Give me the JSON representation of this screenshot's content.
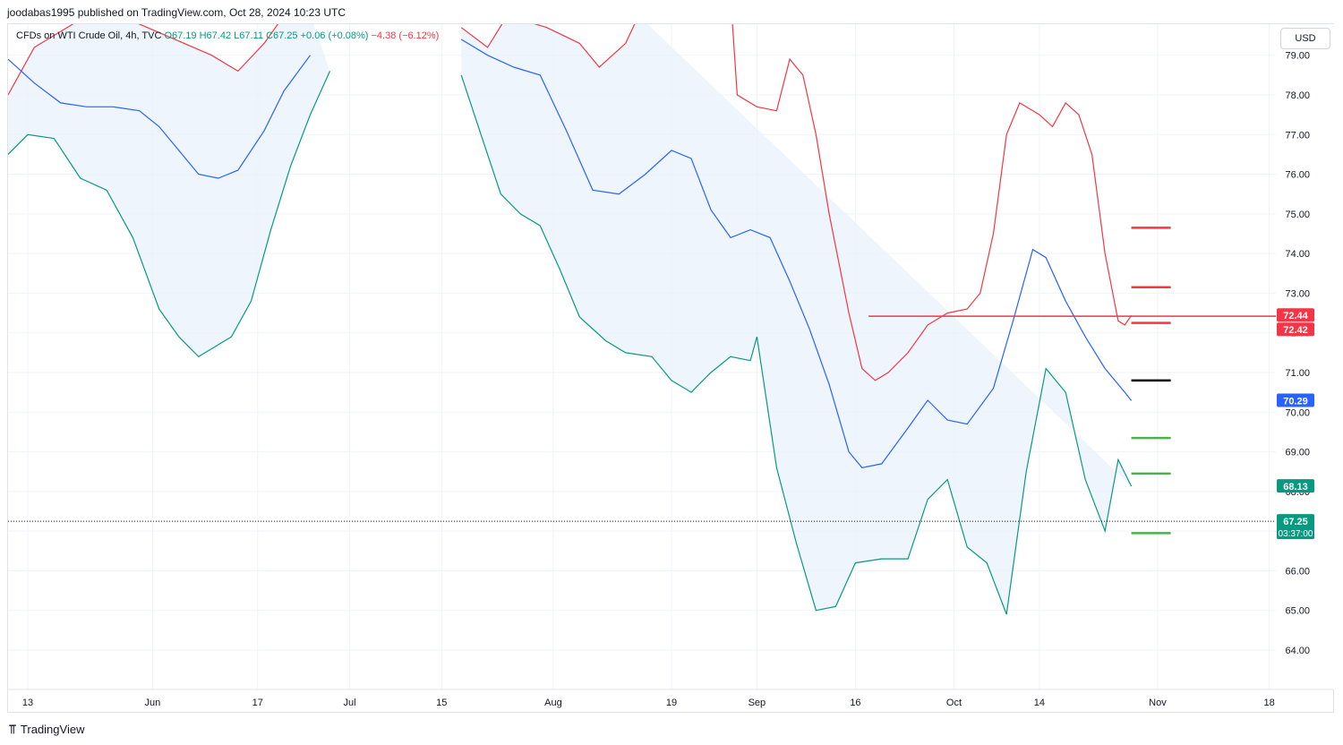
{
  "publisher": "joodabas1995 published on TradingView.com, Oct 28, 2024 10:23 UTC",
  "legend": {
    "symbol": "CFDs on WTI Crude Oil, 4h, TVC",
    "open": "O67.19",
    "high": "H67.42",
    "low": "L67.11",
    "close": "C67.25",
    "change": "+0.06 (+0.08%)",
    "change_range": "−4.38 (−6.12%)"
  },
  "currency": "USD",
  "brand": "TradingView",
  "colors": {
    "up": "#089981",
    "down": "#f23645",
    "basis": "#2962ff",
    "upper_band": "#f23645",
    "lower_band": "#089981",
    "band_fill": "#e8f1fb",
    "grid": "#f0f3fa"
  },
  "chart_data": {
    "type": "line",
    "title": "CFDs on WTI Crude Oil, 4h, TVC",
    "ylabel": "USD",
    "y_range": [
      64.0,
      79.4
    ],
    "y_ticks": [
      "79.00",
      "78.00",
      "77.00",
      "76.00",
      "75.00",
      "74.00",
      "73.00",
      "72.00",
      "71.00",
      "70.00",
      "69.00",
      "68.00",
      "67.00",
      "66.00",
      "65.00",
      "64.00"
    ],
    "x_range": [
      "2024-05-10",
      "2024-11-19"
    ],
    "x_ticks": [
      {
        "date": "2024-05-13",
        "label": "13"
      },
      {
        "date": "2024-06-01",
        "label": "Jun"
      },
      {
        "date": "2024-06-17",
        "label": "17"
      },
      {
        "date": "2024-07-01",
        "label": "Jul"
      },
      {
        "date": "2024-07-15",
        "label": "15"
      },
      {
        "date": "2024-08-01",
        "label": "Aug"
      },
      {
        "date": "2024-08-19",
        "label": "19"
      },
      {
        "date": "2024-09-01",
        "label": "Sep"
      },
      {
        "date": "2024-09-16",
        "label": "16"
      },
      {
        "date": "2024-10-01",
        "label": "Oct"
      },
      {
        "date": "2024-10-14",
        "label": "14"
      },
      {
        "date": "2024-11-01",
        "label": "Nov"
      },
      {
        "date": "2024-11-18",
        "label": "18"
      }
    ],
    "series": [
      {
        "key": "upper",
        "values": [
          [
            "2024-05-10",
            78.0
          ],
          [
            "2024-05-14",
            79.2
          ],
          [
            "2024-05-20",
            79.8
          ],
          [
            "2024-05-27",
            80.0
          ],
          [
            "2024-06-03",
            79.5
          ],
          [
            "2024-06-10",
            79.0
          ],
          [
            "2024-06-14",
            78.6
          ],
          [
            "2024-06-18",
            79.3
          ],
          [
            "2024-06-21",
            80.0
          ],
          [
            "2024-06-24",
            80.5
          ],
          [
            "2024-07-18",
            79.7
          ],
          [
            "2024-07-22",
            79.2
          ],
          [
            "2024-07-25",
            80.0
          ],
          [
            "2024-07-31",
            79.7
          ],
          [
            "2024-08-05",
            79.3
          ],
          [
            "2024-08-08",
            78.7
          ],
          [
            "2024-08-12",
            79.3
          ],
          [
            "2024-08-14",
            80.0
          ],
          [
            "2024-08-28",
            80.5
          ],
          [
            "2024-08-29",
            78.0
          ],
          [
            "2024-09-01",
            77.7
          ],
          [
            "2024-09-04",
            77.6
          ],
          [
            "2024-09-06",
            78.9
          ],
          [
            "2024-09-08",
            78.5
          ],
          [
            "2024-09-10",
            77.0
          ],
          [
            "2024-09-12",
            75.0
          ],
          [
            "2024-09-15",
            72.5
          ],
          [
            "2024-09-17",
            71.1
          ],
          [
            "2024-09-19",
            70.8
          ],
          [
            "2024-09-21",
            71.0
          ],
          [
            "2024-09-24",
            71.5
          ],
          [
            "2024-09-27",
            72.2
          ],
          [
            "2024-09-30",
            72.5
          ],
          [
            "2024-10-03",
            72.6
          ],
          [
            "2024-10-05",
            73.0
          ],
          [
            "2024-10-07",
            74.5
          ],
          [
            "2024-10-09",
            77.0
          ],
          [
            "2024-10-11",
            77.8
          ],
          [
            "2024-10-14",
            77.5
          ],
          [
            "2024-10-16",
            77.2
          ],
          [
            "2024-10-18",
            77.8
          ],
          [
            "2024-10-20",
            77.5
          ],
          [
            "2024-10-22",
            76.5
          ],
          [
            "2024-10-24",
            74.0
          ],
          [
            "2024-10-26",
            72.3
          ],
          [
            "2024-10-27",
            72.2
          ],
          [
            "2024-10-28",
            72.44
          ]
        ]
      },
      {
        "key": "basis",
        "values": [
          [
            "2024-05-10",
            78.9
          ],
          [
            "2024-05-14",
            78.3
          ],
          [
            "2024-05-18",
            77.8
          ],
          [
            "2024-05-22",
            77.7
          ],
          [
            "2024-05-26",
            77.7
          ],
          [
            "2024-05-30",
            77.6
          ],
          [
            "2024-06-02",
            77.2
          ],
          [
            "2024-06-05",
            76.6
          ],
          [
            "2024-06-08",
            76.0
          ],
          [
            "2024-06-11",
            75.9
          ],
          [
            "2024-06-14",
            76.1
          ],
          [
            "2024-06-18",
            77.1
          ],
          [
            "2024-06-21",
            78.1
          ],
          [
            "2024-06-25",
            79.0
          ],
          [
            "2024-07-18",
            79.4
          ],
          [
            "2024-07-22",
            79.0
          ],
          [
            "2024-07-26",
            78.7
          ],
          [
            "2024-07-30",
            78.5
          ],
          [
            "2024-08-03",
            77.1
          ],
          [
            "2024-08-07",
            75.6
          ],
          [
            "2024-08-11",
            75.5
          ],
          [
            "2024-08-15",
            76.0
          ],
          [
            "2024-08-19",
            76.6
          ],
          [
            "2024-08-22",
            76.4
          ],
          [
            "2024-08-25",
            75.1
          ],
          [
            "2024-08-28",
            74.4
          ],
          [
            "2024-08-31",
            74.6
          ],
          [
            "2024-09-03",
            74.4
          ],
          [
            "2024-09-06",
            73.3
          ],
          [
            "2024-09-09",
            72.1
          ],
          [
            "2024-09-12",
            70.7
          ],
          [
            "2024-09-15",
            69.0
          ],
          [
            "2024-09-17",
            68.6
          ],
          [
            "2024-09-20",
            68.7
          ],
          [
            "2024-09-24",
            69.6
          ],
          [
            "2024-09-27",
            70.3
          ],
          [
            "2024-09-30",
            69.8
          ],
          [
            "2024-10-03",
            69.7
          ],
          [
            "2024-10-07",
            70.6
          ],
          [
            "2024-10-10",
            72.3
          ],
          [
            "2024-10-13",
            74.1
          ],
          [
            "2024-10-15",
            73.9
          ],
          [
            "2024-10-18",
            72.8
          ],
          [
            "2024-10-21",
            71.9
          ],
          [
            "2024-10-24",
            71.1
          ],
          [
            "2024-10-27",
            70.5
          ],
          [
            "2024-10-28",
            70.29
          ]
        ]
      },
      {
        "key": "lower",
        "values": [
          [
            "2024-05-10",
            76.5
          ],
          [
            "2024-05-13",
            77.0
          ],
          [
            "2024-05-17",
            76.9
          ],
          [
            "2024-05-21",
            75.9
          ],
          [
            "2024-05-25",
            75.6
          ],
          [
            "2024-05-29",
            74.4
          ],
          [
            "2024-06-02",
            72.6
          ],
          [
            "2024-06-05",
            71.9
          ],
          [
            "2024-06-08",
            71.4
          ],
          [
            "2024-06-11",
            71.7
          ],
          [
            "2024-06-13",
            71.9
          ],
          [
            "2024-06-16",
            72.8
          ],
          [
            "2024-06-19",
            74.6
          ],
          [
            "2024-06-22",
            76.2
          ],
          [
            "2024-06-25",
            77.5
          ],
          [
            "2024-06-28",
            78.6
          ],
          [
            "2024-07-18",
            78.5
          ],
          [
            "2024-07-21",
            77.0
          ],
          [
            "2024-07-24",
            75.5
          ],
          [
            "2024-07-27",
            75.0
          ],
          [
            "2024-07-30",
            74.7
          ],
          [
            "2024-08-02",
            73.6
          ],
          [
            "2024-08-05",
            72.4
          ],
          [
            "2024-08-09",
            71.8
          ],
          [
            "2024-08-12",
            71.5
          ],
          [
            "2024-08-16",
            71.4
          ],
          [
            "2024-08-19",
            70.8
          ],
          [
            "2024-08-22",
            70.5
          ],
          [
            "2024-08-25",
            71.0
          ],
          [
            "2024-08-28",
            71.4
          ],
          [
            "2024-08-31",
            71.3
          ],
          [
            "2024-09-01",
            71.9
          ],
          [
            "2024-09-04",
            68.6
          ],
          [
            "2024-09-07",
            66.7
          ],
          [
            "2024-09-10",
            65.0
          ],
          [
            "2024-09-13",
            65.1
          ],
          [
            "2024-09-16",
            66.2
          ],
          [
            "2024-09-20",
            66.3
          ],
          [
            "2024-09-24",
            66.3
          ],
          [
            "2024-09-27",
            67.8
          ],
          [
            "2024-09-30",
            68.3
          ],
          [
            "2024-10-03",
            66.6
          ],
          [
            "2024-10-06",
            66.2
          ],
          [
            "2024-10-09",
            64.9
          ],
          [
            "2024-10-12",
            68.5
          ],
          [
            "2024-10-15",
            71.1
          ],
          [
            "2024-10-18",
            70.5
          ],
          [
            "2024-10-21",
            68.3
          ],
          [
            "2024-10-24",
            67.0
          ],
          [
            "2024-10-26",
            68.8
          ],
          [
            "2024-10-28",
            68.13
          ]
        ]
      }
    ],
    "level_lines": [
      {
        "price": 72.42,
        "color": "#f23645",
        "from": "2024-09-18",
        "to": "2024-10-29",
        "style": "horizontal-line"
      },
      {
        "price": 74.65,
        "color": "#f23645",
        "from": "2024-10-28",
        "to": "2024-11-03"
      },
      {
        "price": 73.15,
        "color": "#f23645",
        "from": "2024-10-28",
        "to": "2024-11-03"
      },
      {
        "price": 72.25,
        "color": "#f23645",
        "from": "2024-10-28",
        "to": "2024-11-03"
      },
      {
        "price": 70.8,
        "color": "#000000",
        "from": "2024-10-28",
        "to": "2024-11-03"
      },
      {
        "price": 69.35,
        "color": "#4caf50",
        "from": "2024-10-28",
        "to": "2024-11-03"
      },
      {
        "price": 68.45,
        "color": "#4caf50",
        "from": "2024-10-28",
        "to": "2024-11-03"
      },
      {
        "price": 66.95,
        "color": "#4caf50",
        "from": "2024-10-28",
        "to": "2024-11-03"
      }
    ],
    "current_price_line": 67.25,
    "price_labels": [
      {
        "text": "72.44",
        "price": 72.44,
        "color": "#f23645"
      },
      {
        "text": "72.42",
        "price": 72.42,
        "color": "#f23645"
      },
      {
        "text": "70.29",
        "price": 70.29,
        "color": "#2962ff"
      },
      {
        "text": "68.13",
        "price": 68.13,
        "color": "#089981"
      },
      {
        "text": "67.25",
        "price": 67.25,
        "color": "#089981",
        "subtext": "03:37:00"
      }
    ]
  }
}
